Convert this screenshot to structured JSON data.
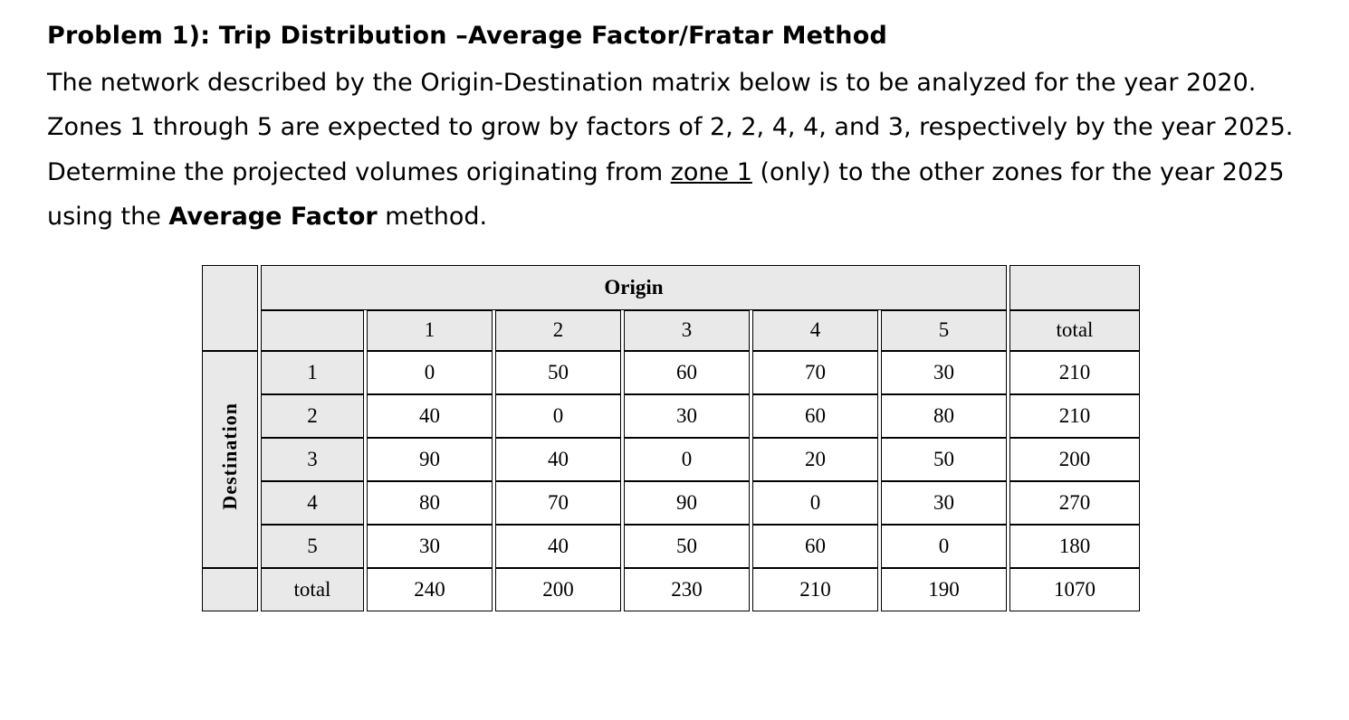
{
  "page": {
    "title": "Problem 1): Trip Distribution –Average Factor/Fratar Method",
    "statement": {
      "part1": "The network described by the Origin-Destination matrix below is to be analyzed for the year 2020.  Zones 1 through 5 are expected to grow by factors of 2, 2, 4, 4, and 3, respectively by the year 2025.  Determine the projected volumes originating from ",
      "zone_underlined": "zone 1",
      "part2": " (only) to the other zones for the year 2025 using the ",
      "method_bold": "Average Factor",
      "part3": " method."
    }
  },
  "table": {
    "origin_header": "Origin",
    "destination_header": "Destination",
    "col_headers": [
      "1",
      "2",
      "3",
      "4",
      "5",
      "total"
    ],
    "rows": [
      {
        "label": "1",
        "values": [
          "0",
          "50",
          "60",
          "70",
          "30",
          "210"
        ]
      },
      {
        "label": "2",
        "values": [
          "40",
          "0",
          "30",
          "60",
          "80",
          "210"
        ]
      },
      {
        "label": "3",
        "values": [
          "90",
          "40",
          "0",
          "20",
          "50",
          "200"
        ]
      },
      {
        "label": "4",
        "values": [
          "80",
          "70",
          "90",
          "0",
          "30",
          "270"
        ]
      },
      {
        "label": "5",
        "values": [
          "30",
          "40",
          "50",
          "60",
          "0",
          "180"
        ]
      },
      {
        "label": "total",
        "values": [
          "240",
          "200",
          "230",
          "210",
          "190",
          "1070"
        ]
      }
    ]
  },
  "colors": {
    "header_fill": "#e9e9e9",
    "border": "#000000",
    "text": "#000000",
    "background": "#ffffff"
  }
}
